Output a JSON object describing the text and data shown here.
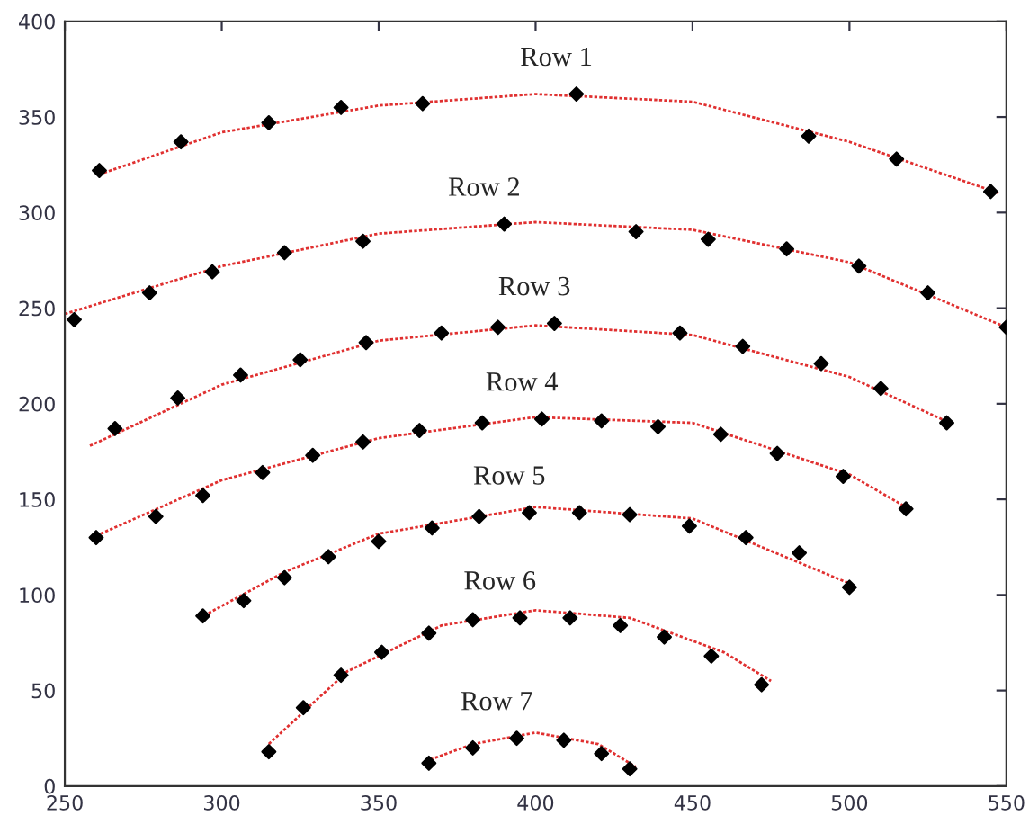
{
  "chart_data": {
    "type": "scatter",
    "xlim": [
      250,
      550
    ],
    "ylim": [
      0,
      400
    ],
    "xticks": [
      250,
      300,
      350,
      400,
      450,
      500,
      550
    ],
    "yticks": [
      0,
      50,
      100,
      150,
      200,
      250,
      300,
      350,
      400
    ],
    "series": [
      {
        "name": "Row 1",
        "marker": "diamond",
        "color": "#000000",
        "x": [
          261,
          287,
          315,
          338,
          364,
          413,
          487,
          515,
          545
        ],
        "values": [
          322,
          337,
          347,
          355,
          357,
          362,
          340,
          328,
          311
        ]
      },
      {
        "name": "Row 2",
        "marker": "diamond",
        "color": "#000000",
        "x": [
          253,
          277,
          297,
          320,
          345,
          390,
          432,
          455,
          480,
          503,
          525,
          550
        ],
        "values": [
          244,
          258,
          269,
          279,
          285,
          294,
          290,
          286,
          281,
          272,
          258,
          240
        ]
      },
      {
        "name": "Row 3",
        "marker": "diamond",
        "color": "#000000",
        "x": [
          266,
          286,
          306,
          325,
          346,
          370,
          388,
          406,
          446,
          466,
          491,
          510,
          531
        ],
        "values": [
          187,
          203,
          215,
          223,
          232,
          237,
          240,
          242,
          237,
          230,
          221,
          208,
          190
        ]
      },
      {
        "name": "Row 4",
        "marker": "diamond",
        "color": "#000000",
        "x": [
          260,
          279,
          294,
          313,
          329,
          345,
          363,
          383,
          402,
          421,
          439,
          459,
          477,
          498,
          518
        ],
        "values": [
          130,
          141,
          152,
          164,
          173,
          180,
          186,
          190,
          192,
          191,
          188,
          184,
          174,
          162,
          145
        ]
      },
      {
        "name": "Row 5",
        "marker": "diamond",
        "color": "#000000",
        "x": [
          294,
          307,
          320,
          334,
          350,
          367,
          382,
          398,
          414,
          430,
          449,
          467,
          484,
          500
        ],
        "values": [
          89,
          97,
          109,
          120,
          128,
          135,
          141,
          143,
          143,
          142,
          136,
          130,
          122,
          104
        ]
      },
      {
        "name": "Row 6",
        "marker": "diamond",
        "color": "#000000",
        "x": [
          315,
          326,
          338,
          351,
          366,
          380,
          395,
          411,
          427,
          441,
          456,
          472
        ],
        "values": [
          18,
          41,
          58,
          70,
          80,
          87,
          88,
          88,
          84,
          78,
          68,
          53
        ]
      },
      {
        "name": "Row 7",
        "marker": "diamond",
        "color": "#000000",
        "x": [
          366,
          380,
          394,
          409,
          421,
          430
        ],
        "values": [
          12,
          20,
          25,
          24,
          17,
          9
        ]
      },
      {
        "type": "line",
        "line_style": "dotted",
        "color": "#e03030",
        "x": [
          261,
          300,
          350,
          400,
          450,
          500,
          548
        ],
        "values": [
          320,
          342,
          356,
          362,
          358,
          337,
          310
        ]
      },
      {
        "type": "line",
        "line_style": "dotted",
        "color": "#e03030",
        "x": [
          250,
          300,
          350,
          400,
          450,
          500,
          550
        ],
        "values": [
          247,
          272,
          289,
          295,
          291,
          274,
          240
        ]
      },
      {
        "type": "line",
        "line_style": "dotted",
        "color": "#e03030",
        "x": [
          258,
          300,
          350,
          400,
          450,
          500,
          532
        ],
        "values": [
          178,
          210,
          233,
          241,
          236,
          214,
          190
        ]
      },
      {
        "type": "line",
        "line_style": "dotted",
        "color": "#e03030",
        "x": [
          260,
          300,
          350,
          400,
          450,
          500,
          519
        ],
        "values": [
          131,
          160,
          182,
          193,
          190,
          163,
          145
        ]
      },
      {
        "type": "line",
        "line_style": "dotted",
        "color": "#e03030",
        "x": [
          293,
          320,
          350,
          400,
          450,
          500
        ],
        "values": [
          88,
          112,
          132,
          146,
          140,
          106
        ]
      },
      {
        "type": "line",
        "line_style": "dotted",
        "color": "#e03030",
        "x": [
          315,
          340,
          370,
          400,
          430,
          460,
          475
        ],
        "values": [
          22,
          60,
          84,
          92,
          88,
          70,
          55
        ]
      },
      {
        "type": "line",
        "line_style": "dotted",
        "color": "#e03030",
        "x": [
          365,
          380,
          400,
          420,
          432
        ],
        "values": [
          13,
          22,
          28,
          22,
          10
        ]
      }
    ]
  }
}
